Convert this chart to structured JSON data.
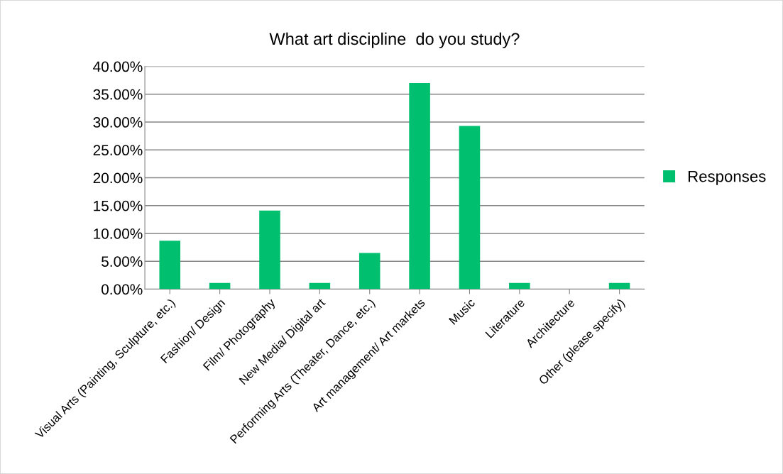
{
  "chart_data": {
    "type": "bar",
    "title": "What art discipline  do you study?",
    "categories": [
      "Visual Arts (Painting, Sculpture, etc.)",
      "Fashion/ Design",
      "Film/ Photography",
      "New Media/ Digital art",
      "Performing Arts (Theater, Dance, etc.)",
      "Art management/ Art markets",
      "Music",
      "Literature",
      "Architecture",
      "Other (please specify)"
    ],
    "series": [
      {
        "name": "Responses",
        "color": "#00bf6f",
        "values": [
          8.7,
          1.1,
          14.1,
          1.1,
          6.5,
          37.0,
          29.3,
          1.1,
          0,
          1.1
        ]
      }
    ],
    "ylim": [
      0,
      40
    ],
    "yticks": [
      {
        "value": 0,
        "label": "0.00%"
      },
      {
        "value": 5,
        "label": "5.00%"
      },
      {
        "value": 10,
        "label": "10.00%"
      },
      {
        "value": 15,
        "label": "15.00%"
      },
      {
        "value": 20,
        "label": "20.00%"
      },
      {
        "value": 25,
        "label": "25.00%"
      },
      {
        "value": 30,
        "label": "30.00%"
      },
      {
        "value": 35,
        "label": "35.00%"
      },
      {
        "value": 40,
        "label": "40.00%"
      }
    ],
    "grid": "y",
    "legend": "right"
  }
}
